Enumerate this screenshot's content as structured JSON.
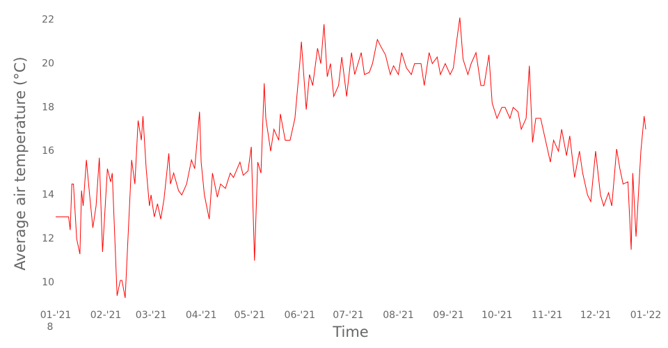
{
  "chart_data": {
    "type": "line",
    "xlabel": "Time",
    "ylabel": "Average air temperature (°C)",
    "x_sublabel": "8",
    "x": [
      0,
      8,
      9,
      10,
      11,
      13,
      15,
      16,
      17,
      19,
      21,
      23,
      25,
      27,
      29,
      32,
      34,
      35,
      38,
      40,
      41,
      43,
      46,
      47,
      49,
      51,
      53,
      54,
      56,
      58,
      59,
      61,
      63,
      65,
      67,
      70,
      71,
      73,
      76,
      78,
      81,
      84,
      86,
      89,
      90,
      92,
      95,
      97,
      100,
      102,
      105,
      108,
      110,
      114,
      116,
      119,
      121,
      123,
      125,
      127,
      129,
      130,
      133,
      135,
      138,
      139,
      142,
      145,
      148,
      151,
      152,
      155,
      157,
      159,
      162,
      164,
      166,
      168,
      170,
      172,
      175,
      177,
      180,
      183,
      185,
      189,
      191,
      194,
      196,
      199,
      201,
      204,
      207,
      209,
      212,
      214,
      217,
      220,
      222,
      226,
      228,
      231,
      233,
      236,
      238,
      241,
      244,
      246,
      248,
      250,
      252,
      255,
      257,
      260,
      263,
      265,
      268,
      270,
      273,
      276,
      278,
      281,
      283,
      286,
      288,
      291,
      293,
      295,
      297,
      300,
      303,
      306,
      308,
      311,
      313,
      316,
      318,
      321,
      324,
      326,
      329,
      331,
      334,
      337,
      339,
      342,
      344,
      347,
      349,
      351,
      354,
      356,
      357,
      359,
      362,
      364,
      365
    ],
    "series": [
      {
        "name": "Average air temperature",
        "color": "#ff0000",
        "values": [
          13.0,
          13.0,
          12.4,
          14.5,
          14.5,
          12.0,
          11.3,
          14.2,
          13.5,
          15.6,
          14.0,
          12.5,
          13.5,
          15.7,
          11.4,
          15.2,
          14.6,
          15.0,
          9.4,
          10.1,
          10.1,
          9.3,
          14.0,
          15.6,
          14.5,
          17.4,
          16.5,
          17.6,
          15.2,
          13.5,
          14.0,
          13.0,
          13.6,
          12.9,
          13.8,
          15.9,
          14.5,
          15.0,
          14.2,
          14.0,
          14.5,
          15.6,
          15.2,
          17.8,
          15.5,
          14.0,
          12.9,
          15.0,
          13.9,
          14.5,
          14.3,
          15.0,
          14.8,
          15.5,
          14.9,
          15.1,
          16.2,
          11.0,
          15.5,
          15.0,
          19.1,
          17.5,
          16.0,
          17.0,
          16.5,
          17.7,
          16.5,
          16.5,
          17.5,
          20.0,
          21.0,
          17.9,
          19.5,
          19.0,
          20.7,
          20.0,
          21.8,
          19.4,
          20.0,
          18.5,
          19.0,
          20.3,
          18.5,
          20.5,
          19.5,
          20.5,
          19.5,
          19.6,
          20.0,
          21.1,
          20.8,
          20.4,
          19.5,
          19.9,
          19.5,
          20.5,
          19.8,
          19.5,
          20.0,
          20.0,
          19.0,
          20.5,
          20.0,
          20.3,
          19.5,
          20.0,
          19.5,
          19.8,
          21.0,
          22.1,
          20.2,
          19.5,
          20.0,
          20.5,
          19.0,
          19.0,
          20.4,
          18.2,
          17.5,
          18.0,
          18.0,
          17.5,
          18.0,
          17.8,
          17.0,
          17.5,
          19.9,
          16.4,
          17.5,
          17.5,
          16.5,
          15.5,
          16.5,
          16.0,
          17.0,
          15.8,
          16.7,
          14.8,
          16.0,
          15.0,
          14.0,
          13.7,
          16.0,
          14.0,
          13.5,
          14.1,
          13.5,
          16.1,
          15.2,
          14.5,
          14.6,
          11.5,
          15.0,
          12.1,
          16.0,
          17.6,
          17.0
        ]
      }
    ],
    "xlim": [
      0,
      365
    ],
    "xticks": [
      {
        "value": 0,
        "label": "01-'21"
      },
      {
        "value": 31,
        "label": "02-'21"
      },
      {
        "value": 59,
        "label": "03-'21"
      },
      {
        "value": 90,
        "label": "04-'21"
      },
      {
        "value": 120,
        "label": "05-'21"
      },
      {
        "value": 151,
        "label": "06-'21"
      },
      {
        "value": 181,
        "label": "07-'21"
      },
      {
        "value": 212,
        "label": "08-'21"
      },
      {
        "value": 243,
        "label": "09-'21"
      },
      {
        "value": 273,
        "label": "10-'21"
      },
      {
        "value": 304,
        "label": "11-'21"
      },
      {
        "value": 334,
        "label": "12-'21"
      },
      {
        "value": 365,
        "label": "01-'22"
      }
    ],
    "ylim": [
      9.3,
      22.3
    ],
    "yticks": [
      10,
      12,
      14,
      16,
      18,
      20,
      22
    ]
  }
}
